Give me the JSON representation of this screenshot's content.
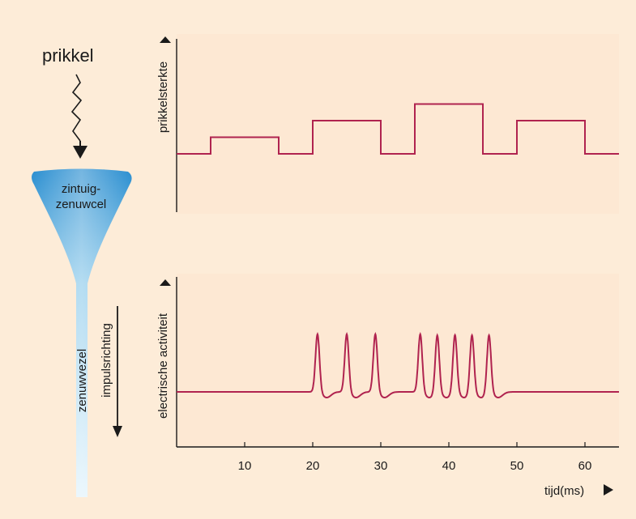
{
  "left": {
    "stimulus_label": "prikkel",
    "cell_label_line1": "zintuig-",
    "cell_label_line2": "zenuwcel",
    "fiber_label": "zenuwvezel",
    "direction_label": "impulsrichting"
  },
  "chart_data": [
    {
      "type": "line",
      "ylabel": "prikkelsterkte",
      "xlim": [
        0,
        65
      ],
      "grid": false,
      "steps": [
        {
          "x": 0,
          "y": 0
        },
        {
          "x": 5,
          "y": 1
        },
        {
          "x": 15,
          "y": 0
        },
        {
          "x": 20,
          "y": 2
        },
        {
          "x": 30,
          "y": 0
        },
        {
          "x": 35,
          "y": 3
        },
        {
          "x": 45,
          "y": 0
        },
        {
          "x": 50,
          "y": 2
        },
        {
          "x": 60,
          "y": 0
        },
        {
          "x": 65,
          "y": 0
        }
      ]
    },
    {
      "type": "line",
      "ylabel": "electrische activiteit",
      "xlabel": "tijd(ms)",
      "xlim": [
        0,
        65
      ],
      "xticks": [
        10,
        20,
        30,
        40,
        50,
        60
      ],
      "grid": false,
      "spike_times": [
        20.7,
        25.0,
        29.2,
        35.8,
        38.3,
        40.9,
        43.4,
        45.9
      ]
    }
  ],
  "colors": {
    "background": "#fdecd8",
    "panel": "#fde8d3",
    "trace": "#b0234f",
    "axis": "#1a1a1a",
    "cell_top": "#2a8ed0",
    "cell_bottom": "#dff1fb"
  }
}
